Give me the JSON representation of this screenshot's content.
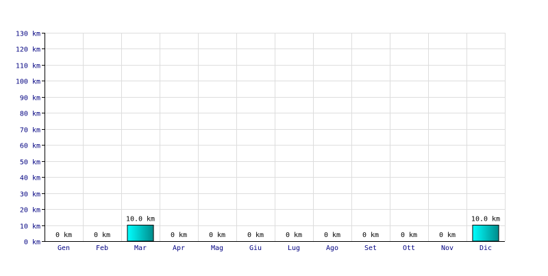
{
  "chart_data": {
    "type": "bar",
    "categories": [
      "Gen",
      "Feb",
      "Mar",
      "Apr",
      "Mag",
      "Giu",
      "Lug",
      "Ago",
      "Set",
      "Ott",
      "Nov",
      "Dic"
    ],
    "values": [
      0,
      0,
      10.0,
      0,
      0,
      0,
      0,
      0,
      0,
      0,
      0,
      10.0
    ],
    "value_labels": [
      "0 km",
      "0 km",
      "10.0 km",
      "0 km",
      "0 km",
      "0 km",
      "0 km",
      "0 km",
      "0 km",
      "0 km",
      "0 km",
      "10.0 km"
    ],
    "y_ticks": [
      0,
      10,
      20,
      30,
      40,
      50,
      60,
      70,
      80,
      90,
      100,
      110,
      120,
      130
    ],
    "y_tick_labels": [
      "0 km",
      "10 km",
      "20 km",
      "30 km",
      "40 km",
      "50 km",
      "60 km",
      "70 km",
      "80 km",
      "90 km",
      "100 km",
      "110 km",
      "120 km",
      "130 km"
    ],
    "ylim": [
      0,
      130
    ],
    "title": "",
    "xlabel": "",
    "ylabel": "",
    "grid": true,
    "legend": "none",
    "colors": {
      "bar_light": "#00ffff",
      "bar_dark": "#008b8b",
      "bar_stroke": "#000000",
      "grid": "#dddddd",
      "axis": "#000000",
      "text": "#000080",
      "value_text": "#000000"
    }
  }
}
